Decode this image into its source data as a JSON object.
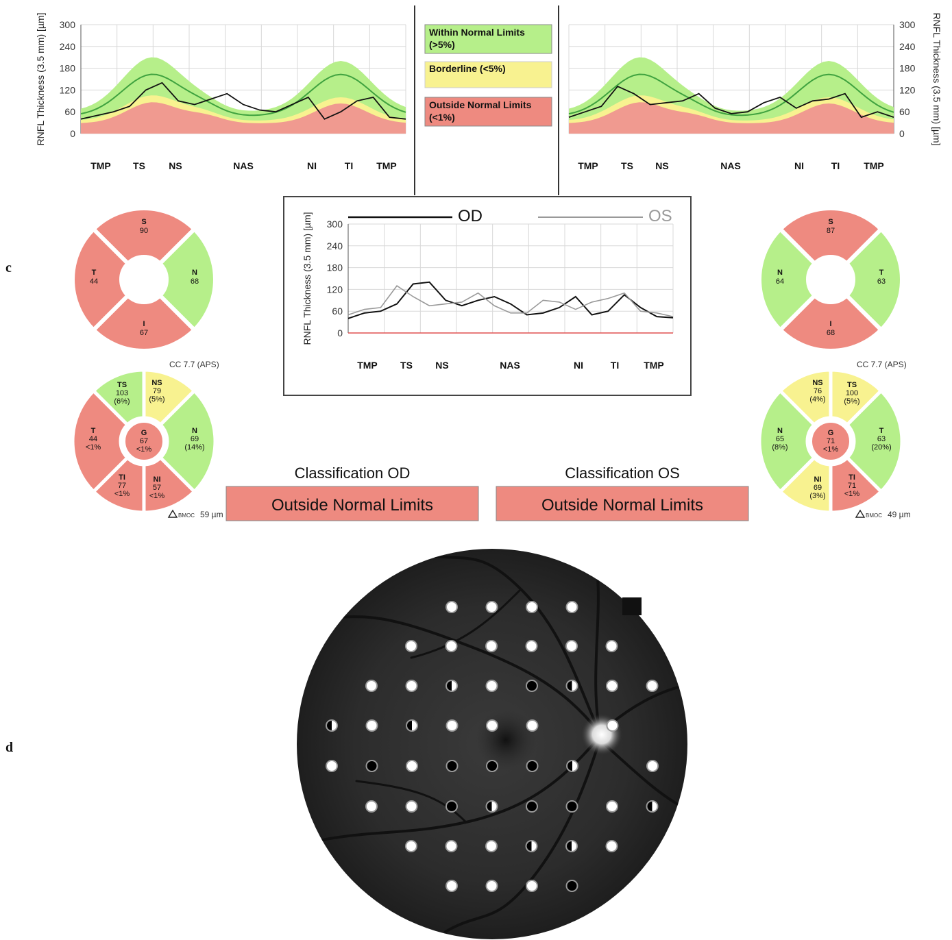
{
  "panel_labels": {
    "c": "c",
    "d": "d"
  },
  "legend": {
    "within": "Within Normal Limits",
    "within_pct": "(>5%)",
    "borderline": "Borderline (<5%)",
    "outside": "Outside Normal Limits",
    "outside_pct": "(<1%)"
  },
  "colors": {
    "green": "#b6ef8a",
    "green_dark": "#3fa23f",
    "yellow": "#f8f290",
    "red": "#ee8a80",
    "red_fill": "#f09a90"
  },
  "charts": {
    "y_label": "RNFL Thickness (3.5 mm) [µm]",
    "y_ticks": [
      "300",
      "240",
      "180",
      "120",
      "60",
      "0"
    ],
    "sectors": [
      "TMP",
      "TS",
      "NS",
      "NAS",
      "NI",
      "TI",
      "TMP"
    ],
    "sectors_os": [
      "TMP",
      "TS",
      "NS",
      "NAS",
      "NI",
      "TI",
      "TMP"
    ],
    "compare_legend": {
      "od": "OD",
      "os": "OS"
    }
  },
  "chart_data": [
    {
      "type": "area",
      "title": "",
      "eye": "OD",
      "ylabel": "RNFL Thickness (3.5 mm) [µm]",
      "ylim": [
        0,
        300
      ],
      "categories": [
        "TMP",
        "TS",
        "NS",
        "NAS",
        "NI",
        "TI",
        "TMP"
      ],
      "x": [
        0,
        5,
        10,
        15,
        20,
        25,
        30,
        35,
        40,
        45,
        50,
        55,
        60,
        65,
        70,
        75,
        80,
        85,
        90,
        95,
        100
      ],
      "series": [
        {
          "name": "",
          "values": [
            40,
            50,
            60,
            75,
            120,
            140,
            90,
            80,
            95,
            110,
            80,
            65,
            60,
            80,
            100,
            40,
            60,
            90,
            100,
            45,
            40
          ]
        }
      ]
    },
    {
      "type": "area",
      "title": "",
      "eye": "OS",
      "ylabel": "RNFL Thickness (3.5 mm) [µm]",
      "ylim": [
        0,
        300
      ],
      "categories": [
        "TMP",
        "TS",
        "NS",
        "NAS",
        "NI",
        "TI",
        "TMP"
      ],
      "x": [
        0,
        5,
        10,
        15,
        20,
        25,
        30,
        35,
        40,
        45,
        50,
        55,
        60,
        65,
        70,
        75,
        80,
        85,
        90,
        95,
        100
      ],
      "series": [
        {
          "name": "",
          "values": [
            45,
            60,
            75,
            130,
            110,
            80,
            85,
            90,
            110,
            70,
            55,
            60,
            85,
            100,
            70,
            90,
            95,
            110,
            45,
            60,
            45
          ]
        }
      ]
    },
    {
      "type": "line",
      "title": "",
      "ylabel": "RNFL Thickness (3.5 mm) [µm]",
      "ylim": [
        0,
        300
      ],
      "categories": [
        "TMP",
        "TS",
        "NS",
        "NAS",
        "NI",
        "TI",
        "TMP"
      ],
      "x": [
        0,
        5,
        10,
        15,
        20,
        25,
        30,
        35,
        40,
        45,
        50,
        55,
        60,
        65,
        70,
        75,
        80,
        85,
        90,
        95,
        100
      ],
      "series": [
        {
          "name": "OD",
          "values": [
            40,
            55,
            60,
            80,
            135,
            140,
            90,
            75,
            90,
            100,
            80,
            50,
            55,
            70,
            100,
            50,
            60,
            105,
            70,
            45,
            42
          ]
        },
        {
          "name": "OS",
          "values": [
            50,
            65,
            70,
            130,
            100,
            75,
            80,
            85,
            110,
            75,
            55,
            55,
            90,
            85,
            65,
            85,
            95,
            110,
            60,
            55,
            45
          ]
        }
      ]
    }
  ],
  "od_quadrants": {
    "S": {
      "name": "S",
      "value": "90"
    },
    "T": {
      "name": "T",
      "value": "44"
    },
    "N": {
      "name": "N",
      "value": "68"
    },
    "I": {
      "name": "I",
      "value": "67"
    }
  },
  "os_quadrants": {
    "S": {
      "name": "S",
      "value": "87"
    },
    "N": {
      "name": "N",
      "value": "64"
    },
    "T": {
      "name": "T",
      "value": "63"
    },
    "I": {
      "name": "I",
      "value": "68"
    }
  },
  "od_sectors": {
    "TS": {
      "name": "TS",
      "value": "103",
      "pct": "(6%)"
    },
    "NS": {
      "name": "NS",
      "value": "79",
      "pct": "(5%)"
    },
    "T": {
      "name": "T",
      "value": "44",
      "pct": "<1%"
    },
    "G": {
      "name": "G",
      "value": "67",
      "pct": "<1%"
    },
    "N": {
      "name": "N",
      "value": "69",
      "pct": "(14%)"
    },
    "TI": {
      "name": "TI",
      "value": "77",
      "pct": "<1%"
    },
    "NI": {
      "name": "NI",
      "value": "57",
      "pct": "<1%"
    }
  },
  "os_sectors": {
    "NS": {
      "name": "NS",
      "value": "76",
      "pct": "(4%)"
    },
    "TS": {
      "name": "TS",
      "value": "100",
      "pct": "(5%)"
    },
    "N": {
      "name": "N",
      "value": "65",
      "pct": "(8%)"
    },
    "G": {
      "name": "G",
      "value": "71",
      "pct": "<1%"
    },
    "T": {
      "name": "T",
      "value": "63",
      "pct": "(20%)"
    },
    "NI": {
      "name": "NI",
      "value": "69",
      "pct": "(3%)"
    },
    "TI": {
      "name": "TI",
      "value": "71",
      "pct": "<1%"
    }
  },
  "cc_od": "CC 7.7 (APS)",
  "cc_os": "CC 7.7 (APS)",
  "bmoc_od": {
    "prefix": "BMOC",
    "value": "59 µm"
  },
  "bmoc_os": {
    "prefix": "BMOC",
    "value": "49 µm"
  },
  "classification": {
    "od_title": "Classification OD",
    "od_result": "Outside Normal Limits",
    "os_title": "Classification OS",
    "os_result": "Outside Normal Limits"
  },
  "perimetry": {
    "rows": [
      [
        "W",
        "W",
        "W",
        "W"
      ],
      [
        "W",
        "W",
        "W",
        "W",
        "W",
        "W"
      ],
      [
        "W",
        "W",
        "H",
        "W",
        "B",
        "H",
        "W",
        "W"
      ],
      [
        "H",
        "W",
        "H",
        "W",
        "W",
        "W",
        "-",
        "W"
      ],
      [
        "W",
        "B",
        "W",
        "B",
        "B",
        "B",
        "H",
        "-",
        "W"
      ],
      [
        "W",
        "W",
        "B",
        "H",
        "B",
        "B",
        "W",
        "H"
      ],
      [
        "W",
        "W",
        "W",
        "H",
        "H",
        "W"
      ],
      [
        "W",
        "W",
        "W",
        "B"
      ]
    ]
  }
}
